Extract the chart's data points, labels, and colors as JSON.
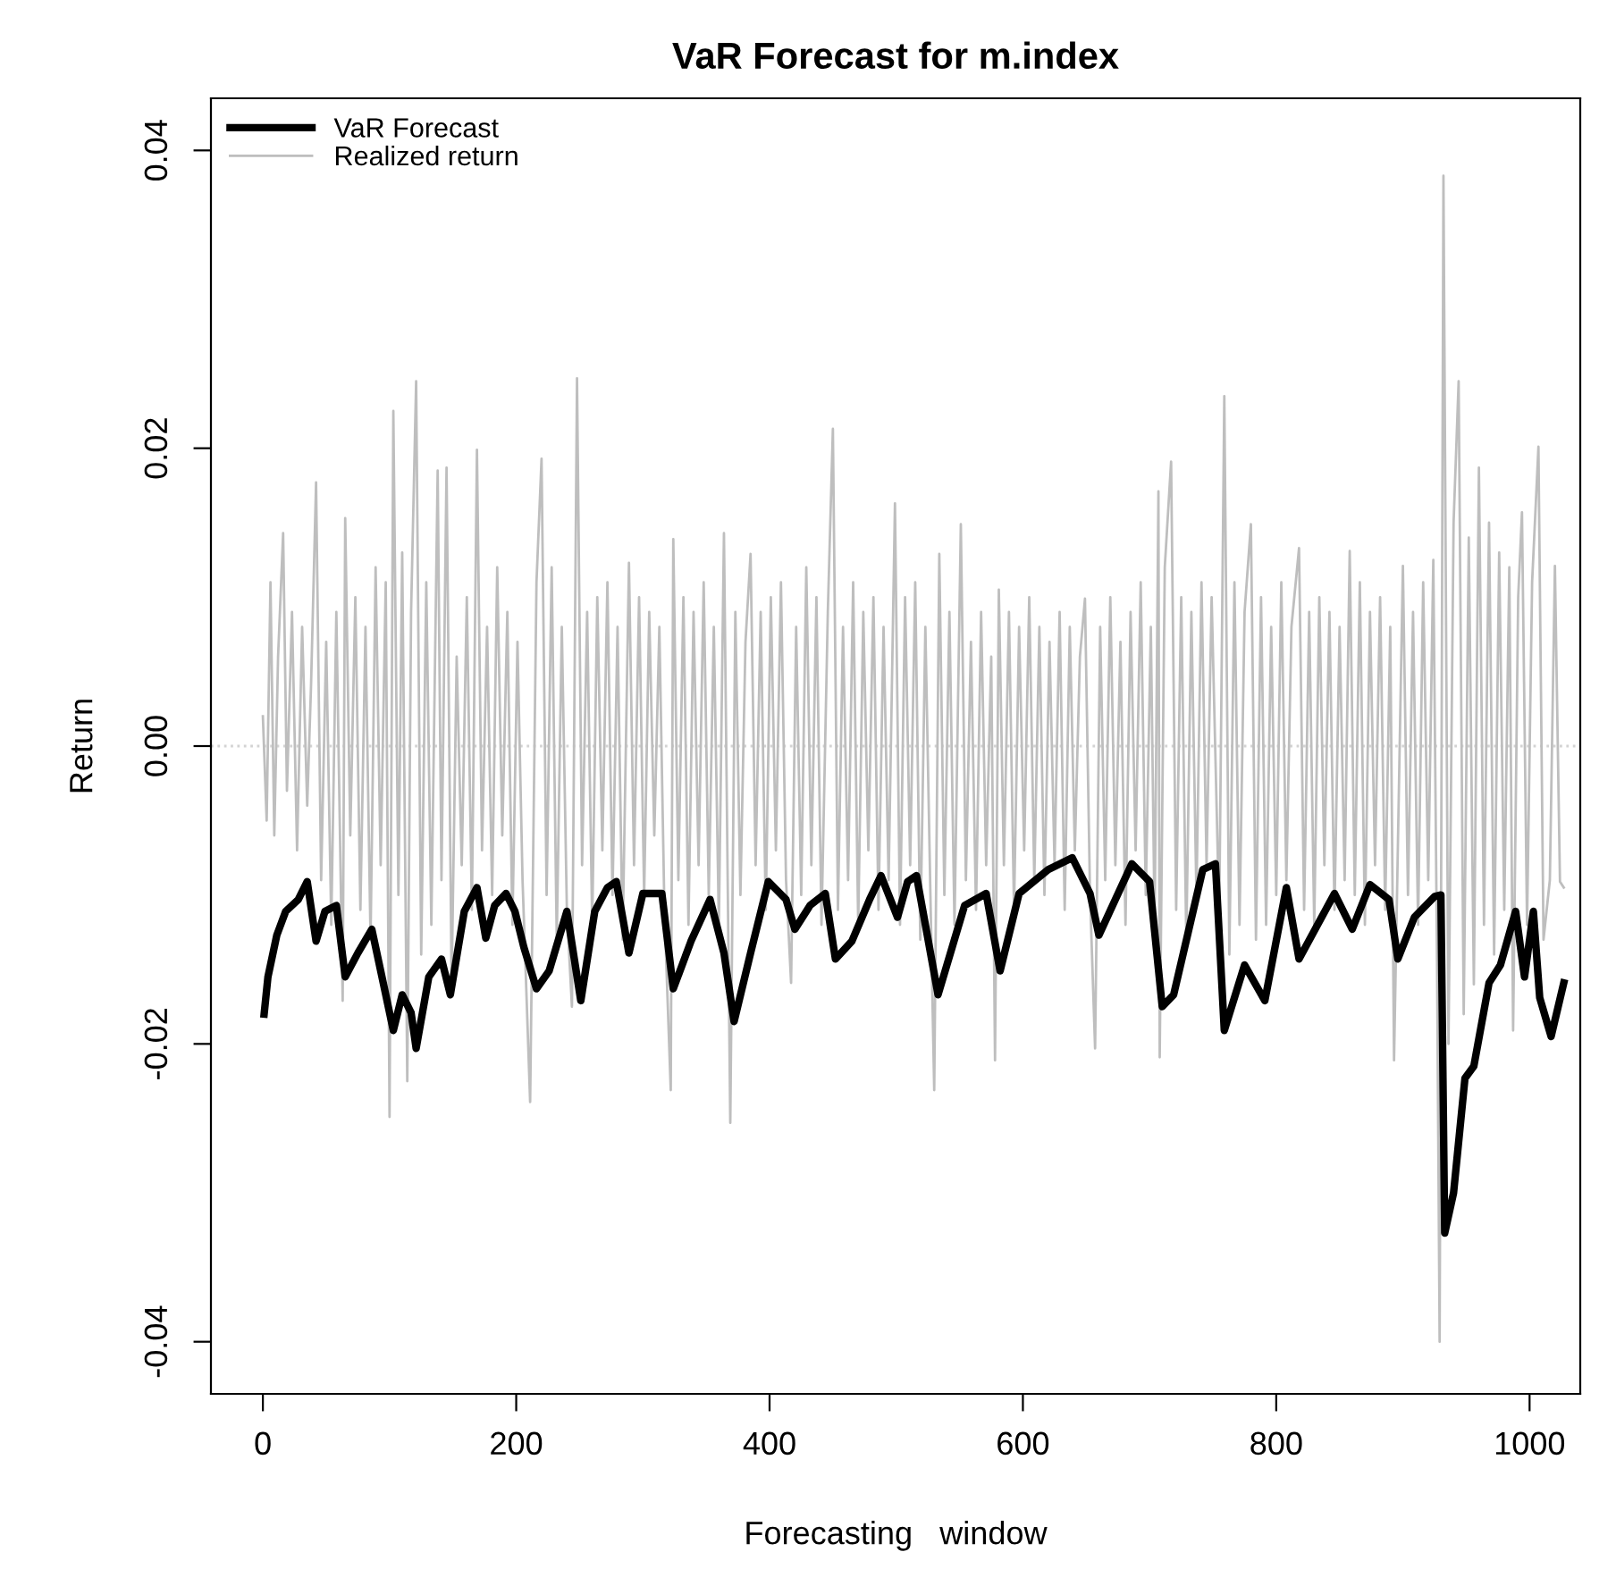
{
  "chart_data": {
    "type": "line",
    "title": "VaR Forecast for m.index",
    "xlabel": "Forecasting   window",
    "ylabel": "Return",
    "xlim": [
      -41,
      1040
    ],
    "xticks": [
      0,
      200,
      400,
      600,
      800,
      1000
    ],
    "ylim": [
      -0.0435,
      0.0435
    ],
    "yticks": [
      {
        "value": -0.04,
        "label": "-0.04"
      },
      {
        "value": -0.02,
        "label": "-0.02"
      },
      {
        "value": 0,
        "label": "0.00"
      },
      {
        "value": 0.02,
        "label": "0.02"
      },
      {
        "value": 0.04,
        "label": "0.04"
      }
    ],
    "legend": "top left",
    "grid": false,
    "ref_lines": [
      {
        "axis": "y",
        "value": 0,
        "color": "#d3d3d3",
        "line_style": "dotted"
      }
    ],
    "series": [
      {
        "name": "VaR Forecast",
        "color": "#000000",
        "x": [
          1,
          4,
          11,
          18,
          28,
          35,
          42,
          49,
          58,
          65,
          75,
          86,
          93,
          103,
          110,
          117,
          121,
          131,
          141,
          148,
          159,
          169,
          176,
          183,
          192,
          199,
          206,
          216,
          226,
          240,
          251,
          262,
          272,
          279,
          289,
          300,
          315,
          324,
          338,
          353,
          364,
          372,
          385,
          399,
          413,
          420,
          432,
          444,
          452,
          465,
          479,
          488,
          501,
          509,
          516,
          533,
          554,
          571,
          582,
          597,
          620,
          639,
          653,
          660,
          686,
          700,
          710,
          719,
          742,
          752,
          759,
          775,
          791,
          808,
          818,
          846,
          860,
          874,
          889,
          896,
          909,
          925,
          930,
          933,
          940,
          949,
          956,
          968,
          977,
          989,
          996,
          1003,
          1008,
          1017,
          1027
        ],
        "values": [
          -0.018,
          -0.0155,
          -0.0127,
          -0.0111,
          -0.0103,
          -0.0091,
          -0.0131,
          -0.0111,
          -0.0107,
          -0.0155,
          -0.0139,
          -0.0123,
          -0.0151,
          -0.0191,
          -0.0167,
          -0.0179,
          -0.0203,
          -0.0155,
          -0.0143,
          -0.0167,
          -0.0111,
          -0.0095,
          -0.0129,
          -0.0107,
          -0.0099,
          -0.0111,
          -0.0135,
          -0.0163,
          -0.0151,
          -0.0111,
          -0.0171,
          -0.0111,
          -0.0095,
          -0.0091,
          -0.0139,
          -0.0099,
          -0.0099,
          -0.0163,
          -0.0131,
          -0.0103,
          -0.0139,
          -0.0185,
          -0.0139,
          -0.0091,
          -0.0103,
          -0.0123,
          -0.0107,
          -0.0099,
          -0.0143,
          -0.0131,
          -0.0103,
          -0.0087,
          -0.0115,
          -0.0091,
          -0.0087,
          -0.0167,
          -0.0107,
          -0.0099,
          -0.0151,
          -0.0099,
          -0.0083,
          -0.0075,
          -0.0099,
          -0.0127,
          -0.0079,
          -0.0091,
          -0.0175,
          -0.0167,
          -0.0083,
          -0.0079,
          -0.0191,
          -0.0147,
          -0.0171,
          -0.0095,
          -0.0143,
          -0.0099,
          -0.0123,
          -0.0093,
          -0.0103,
          -0.0143,
          -0.0115,
          -0.0101,
          -0.01,
          -0.0327,
          -0.03,
          -0.0223,
          -0.0215,
          -0.0159,
          -0.0147,
          -0.0111,
          -0.0155,
          -0.0111,
          -0.0169,
          -0.0195,
          -0.0159
        ]
      },
      {
        "name": "Realized return",
        "color": "#bebebe",
        "x": [
          0,
          3,
          6,
          9,
          12,
          16,
          19,
          23,
          27,
          31,
          35,
          38,
          42,
          46,
          50,
          54,
          58,
          63,
          65,
          69,
          73,
          77,
          81,
          85,
          89,
          93,
          97,
          100,
          103,
          107,
          110,
          114,
          117,
          121,
          125,
          129,
          133,
          138,
          141,
          145,
          149,
          153,
          157,
          161,
          165,
          169,
          173,
          177,
          181,
          185,
          189,
          193,
          197,
          201,
          205,
          211,
          216,
          220,
          224,
          228,
          232,
          236,
          240,
          244,
          248,
          252,
          256,
          260,
          264,
          268,
          272,
          276,
          280,
          284,
          289,
          293,
          297,
          301,
          305,
          309,
          313,
          317,
          322,
          324,
          328,
          332,
          336,
          340,
          344,
          348,
          352,
          356,
          360,
          364,
          369,
          373,
          377,
          381,
          385,
          389,
          393,
          397,
          401,
          405,
          409,
          413,
          417,
          421,
          425,
          429,
          433,
          437,
          441,
          446,
          450,
          454,
          458,
          462,
          466,
          470,
          474,
          478,
          482,
          486,
          490,
          494,
          499,
          503,
          507,
          511,
          515,
          519,
          523,
          527,
          530,
          534,
          538,
          542,
          546,
          551,
          555,
          559,
          563,
          567,
          571,
          575,
          578,
          581,
          585,
          589,
          593,
          597,
          601,
          605,
          609,
          613,
          617,
          621,
          625,
          629,
          633,
          637,
          641,
          645,
          649,
          653,
          657,
          661,
          665,
          669,
          673,
          677,
          681,
          685,
          689,
          693,
          697,
          701,
          704,
          707,
          708,
          712,
          717,
          721,
          725,
          729,
          733,
          737,
          741,
          745,
          749,
          755,
          759,
          763,
          767,
          771,
          775,
          780,
          784,
          788,
          792,
          796,
          800,
          804,
          808,
          812,
          818,
          822,
          826,
          830,
          834,
          838,
          842,
          846,
          850,
          854,
          858,
          862,
          866,
          870,
          874,
          878,
          882,
          886,
          890,
          893,
          900,
          904,
          908,
          912,
          916,
          920,
          924,
          927,
          929,
          932,
          936,
          940,
          944,
          948,
          952,
          956,
          960,
          964,
          968,
          972,
          976,
          980,
          984,
          987,
          991,
          994,
          998,
          1002,
          1007,
          1011,
          1016,
          1020,
          1024,
          1027
        ],
        "values": [
          0.002,
          -0.005,
          0.011,
          -0.006,
          0.006,
          0.0143,
          -0.003,
          0.009,
          -0.007,
          0.008,
          -0.004,
          0.004,
          0.0177,
          -0.009,
          0.007,
          -0.012,
          0.009,
          -0.0171,
          0.0153,
          -0.006,
          0.01,
          -0.011,
          0.008,
          -0.013,
          0.012,
          -0.008,
          0.011,
          -0.0249,
          0.0225,
          -0.01,
          0.013,
          -0.0225,
          0.009,
          0.0245,
          -0.014,
          0.011,
          -0.012,
          0.0185,
          -0.009,
          0.0187,
          -0.016,
          0.006,
          -0.008,
          0.01,
          -0.011,
          0.0199,
          -0.007,
          0.008,
          -0.01,
          0.012,
          -0.006,
          0.009,
          -0.012,
          0.007,
          -0.009,
          -0.0239,
          0.011,
          0.0193,
          -0.01,
          0.012,
          -0.013,
          0.008,
          -0.011,
          -0.0175,
          0.0247,
          -0.008,
          0.009,
          -0.012,
          0.01,
          -0.007,
          0.011,
          -0.01,
          0.008,
          -0.013,
          0.0123,
          -0.008,
          0.01,
          -0.01,
          0.009,
          -0.006,
          0.008,
          -0.011,
          -0.0231,
          0.0139,
          -0.009,
          0.01,
          -0.012,
          0.009,
          -0.008,
          0.011,
          -0.01,
          0.008,
          -0.012,
          0.0143,
          -0.0253,
          0.009,
          -0.01,
          0.007,
          0.0129,
          -0.008,
          0.009,
          -0.011,
          0.01,
          -0.007,
          0.011,
          -0.009,
          -0.0159,
          0.008,
          -0.01,
          0.012,
          -0.008,
          0.01,
          -0.012,
          0.009,
          0.0213,
          -0.011,
          0.008,
          -0.009,
          0.011,
          -0.012,
          0.009,
          -0.007,
          0.01,
          -0.011,
          0.008,
          -0.009,
          0.0163,
          -0.012,
          0.01,
          -0.008,
          0.011,
          -0.013,
          0.008,
          -0.01,
          -0.0231,
          0.0129,
          -0.01,
          0.009,
          -0.012,
          0.0149,
          -0.009,
          0.007,
          -0.011,
          0.009,
          -0.008,
          0.006,
          -0.0211,
          0.0105,
          -0.008,
          0.009,
          -0.011,
          0.008,
          -0.007,
          0.01,
          -0.009,
          0.008,
          -0.01,
          0.007,
          -0.008,
          0.009,
          -0.011,
          0.008,
          -0.007,
          0.006,
          0.0099,
          -0.01,
          -0.0203,
          0.008,
          -0.009,
          0.01,
          -0.008,
          0.007,
          -0.012,
          0.009,
          -0.007,
          0.011,
          -0.01,
          0.008,
          -0.012,
          0.0171,
          -0.0209,
          0.012,
          0.0191,
          -0.011,
          0.01,
          -0.013,
          0.009,
          -0.01,
          0.011,
          -0.008,
          0.01,
          -0.0115,
          0.0235,
          -0.014,
          0.011,
          -0.012,
          0.009,
          0.0149,
          -0.013,
          0.01,
          -0.012,
          0.008,
          -0.01,
          0.011,
          -0.009,
          0.008,
          0.0133,
          -0.011,
          0.009,
          -0.012,
          0.01,
          -0.008,
          0.009,
          -0.011,
          0.008,
          -0.009,
          0.0131,
          -0.01,
          0.011,
          -0.012,
          0.009,
          -0.008,
          0.01,
          -0.011,
          0.008,
          -0.0211,
          0.0121,
          -0.01,
          0.009,
          -0.012,
          0.011,
          -0.009,
          0.0125,
          -0.015,
          -0.04,
          0.0383,
          -0.02,
          0.015,
          0.0245,
          -0.018,
          0.014,
          -0.016,
          0.0187,
          -0.012,
          0.015,
          -0.014,
          0.013,
          -0.011,
          0.012,
          -0.0191,
          0.01,
          0.0157,
          -0.012,
          0.011,
          0.0201,
          -0.013,
          -0.009,
          0.0121,
          -0.0091,
          -0.0095
        ]
      }
    ]
  }
}
